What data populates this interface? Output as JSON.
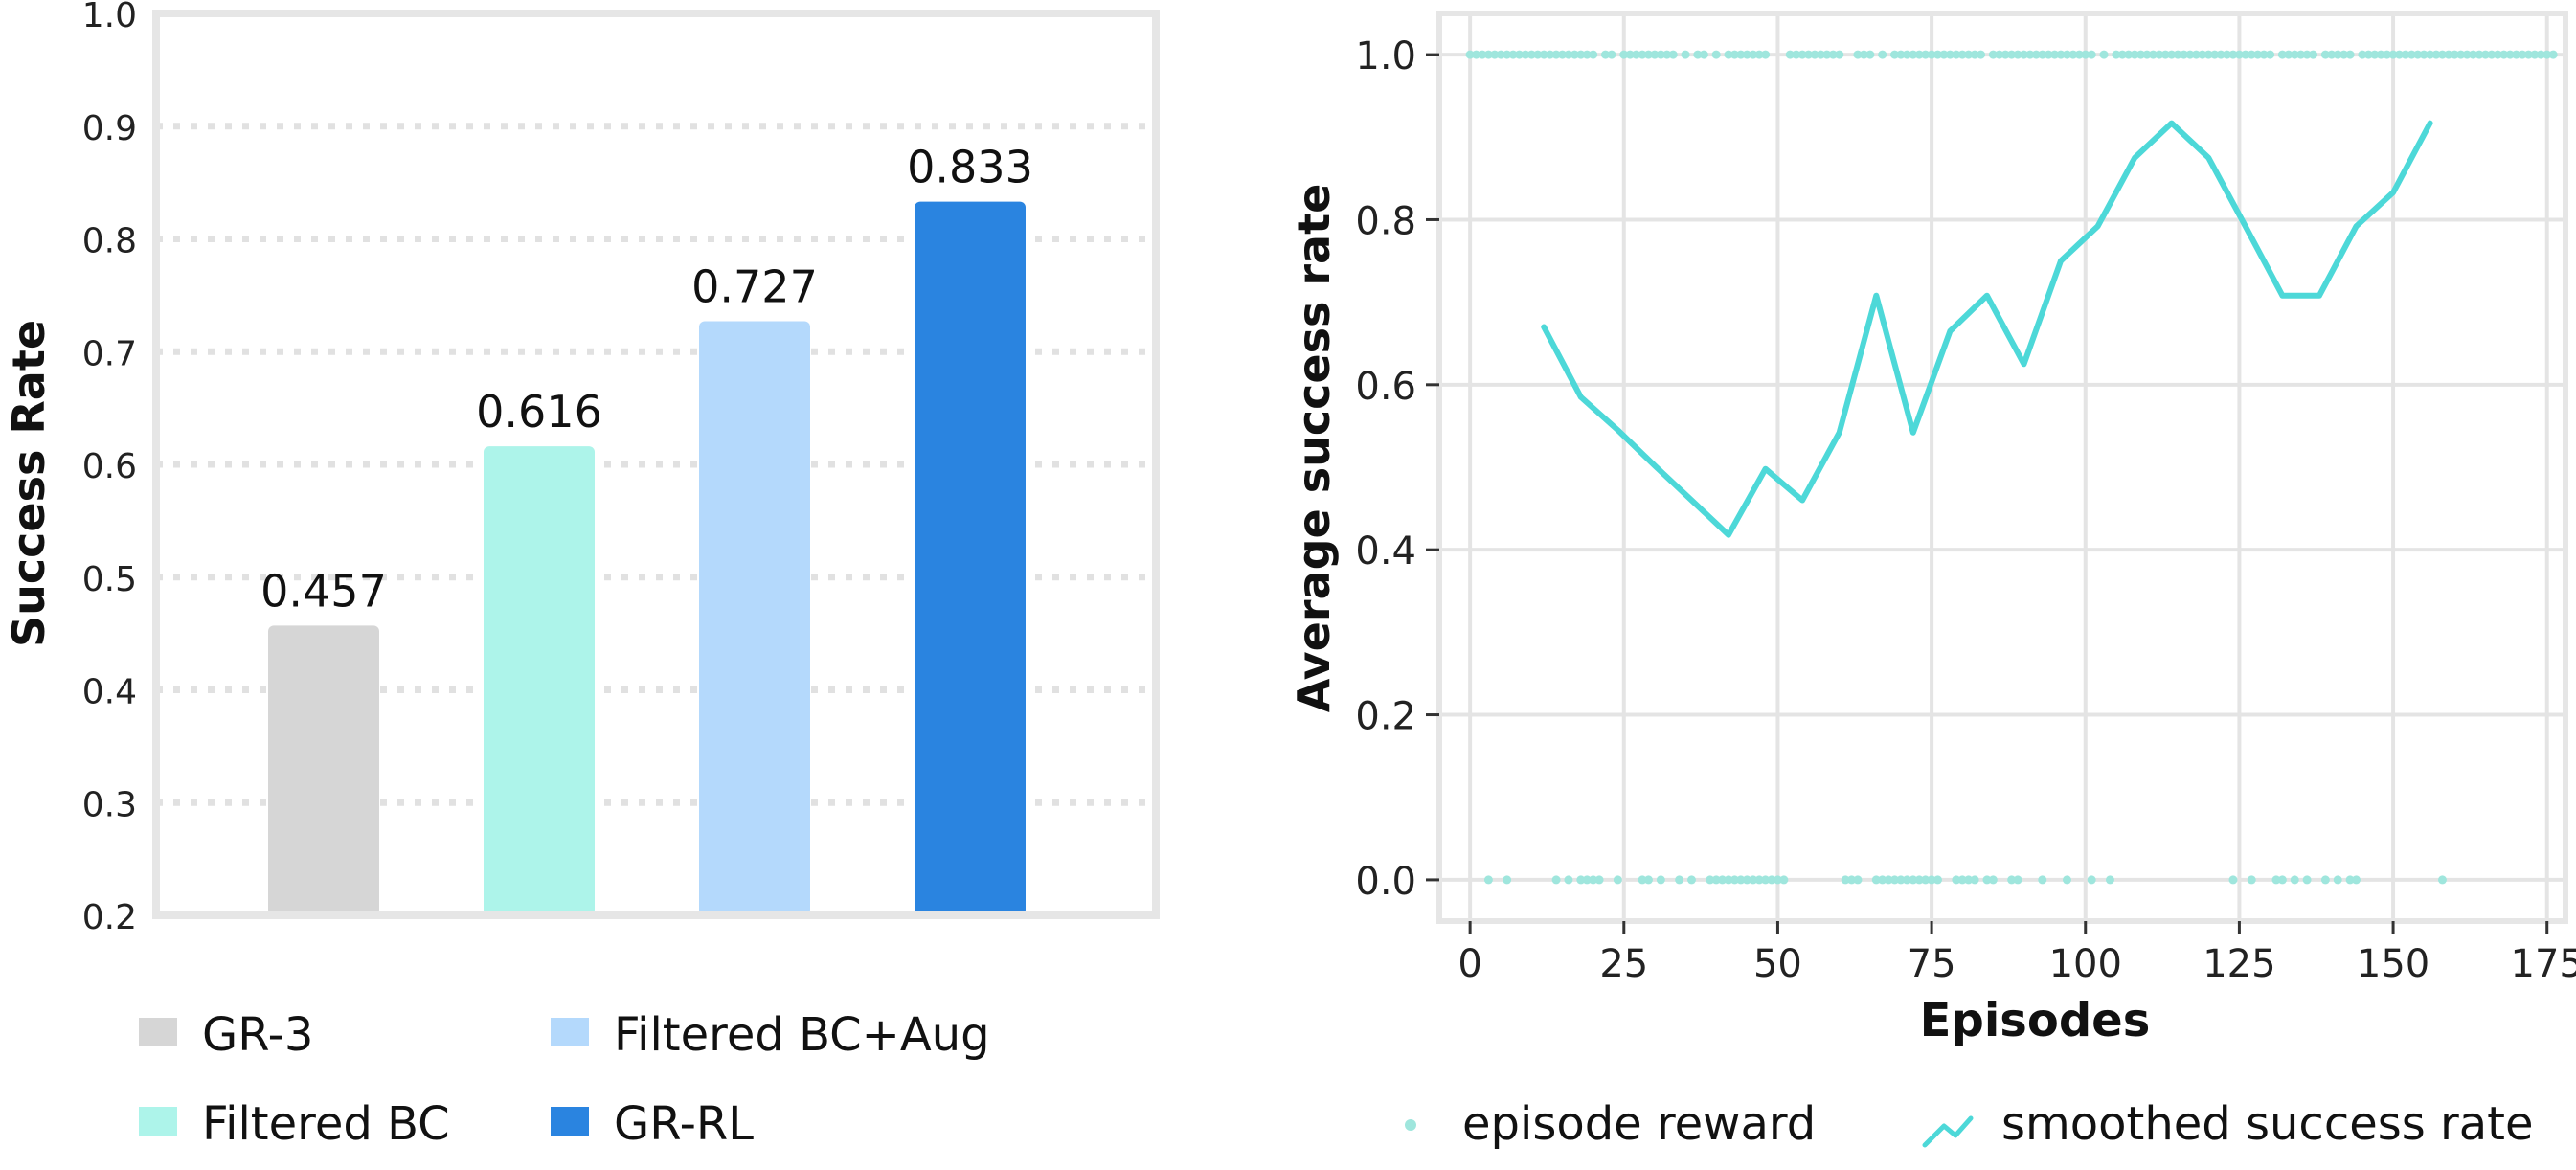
{
  "chart_data": [
    {
      "type": "bar",
      "categories": [
        "GR-3",
        "Filtered BC",
        "Filtered BC+Aug",
        "GR-RL"
      ],
      "values": [
        0.457,
        0.616,
        0.727,
        0.833
      ],
      "data_labels": [
        "0.457",
        "0.616",
        "0.727",
        "0.833"
      ],
      "colors": [
        "#d6d6d6",
        "#adf4ea",
        "#b4d9fc",
        "#2a84e0"
      ],
      "ylabel": "Success Rate",
      "ylim": [
        0.2,
        1.0
      ],
      "yticks": [
        "0.2",
        "0.3",
        "0.4",
        "0.5",
        "0.6",
        "0.7",
        "0.8",
        "0.9",
        "1.0"
      ],
      "grid": "horizontal dotted",
      "legend": {
        "placement": "bottom",
        "entries": [
          {
            "label": "GR-3",
            "color": "#d6d6d6"
          },
          {
            "label": "Filtered BC+Aug",
            "color": "#b4d9fc"
          },
          {
            "label": "Filtered BC",
            "color": "#adf4ea"
          },
          {
            "label": "GR-RL",
            "color": "#2a84e0"
          }
        ]
      }
    },
    {
      "type": "line",
      "xlabel": "Episodes",
      "ylabel": "Average success rate",
      "xlim": [
        -5,
        178
      ],
      "ylim": [
        -0.05,
        1.05
      ],
      "xticks": [
        "0",
        "25",
        "50",
        "75",
        "100",
        "125",
        "150",
        "175"
      ],
      "yticks": [
        "0.0",
        "0.2",
        "0.4",
        "0.6",
        "0.8",
        "1.0"
      ],
      "grid": true,
      "series": [
        {
          "name": "smoothed success rate",
          "color": "#4dd8d8",
          "x": [
            12,
            18,
            24,
            30,
            36,
            42,
            48,
            54,
            60,
            66,
            72,
            78,
            84,
            90,
            96,
            102,
            108,
            114,
            120,
            126,
            132,
            138,
            144,
            150,
            156
          ],
          "y": [
            0.67,
            0.585,
            0.545,
            0.502,
            0.46,
            0.418,
            0.498,
            0.46,
            0.542,
            0.708,
            0.542,
            0.665,
            0.708,
            0.625,
            0.75,
            0.792,
            0.875,
            0.917,
            0.875,
            0.792,
            0.708,
            0.708,
            0.792,
            0.833,
            0.917
          ]
        },
        {
          "name": "episode reward",
          "color": "#9fe6dd",
          "x_success": [
            0,
            1,
            2,
            3,
            4,
            5,
            6,
            7,
            8,
            9,
            10,
            11,
            12,
            13,
            14,
            15,
            16,
            17,
            18,
            19,
            20,
            22,
            23,
            25,
            26,
            27,
            28,
            29,
            30,
            31,
            32,
            33,
            35,
            37,
            38,
            40,
            42,
            43,
            44,
            45,
            46,
            47,
            48,
            52,
            53,
            54,
            55,
            56,
            57,
            58,
            59,
            60,
            63,
            64,
            65,
            67,
            69,
            70,
            71,
            72,
            73,
            74,
            75,
            76,
            77,
            78,
            79,
            80,
            81,
            82,
            83,
            85,
            86,
            87,
            88,
            89,
            90,
            91,
            92,
            93,
            94,
            95,
            96,
            97,
            98,
            99,
            100,
            101,
            103,
            105,
            106,
            107,
            108,
            109,
            110,
            111,
            112,
            113,
            114,
            115,
            116,
            117,
            118,
            119,
            120,
            121,
            122,
            123,
            124,
            125,
            126,
            127,
            128,
            129,
            130,
            132,
            133,
            134,
            135,
            136,
            137,
            139,
            140,
            141,
            142,
            143,
            145,
            146,
            147,
            148,
            149,
            150,
            151,
            152,
            153,
            154,
            155,
            156,
            157,
            158,
            159,
            160,
            161,
            162,
            163,
            164,
            165,
            166,
            167,
            168,
            169,
            170,
            171,
            172,
            173,
            174,
            175,
            176
          ],
          "x_failure": [
            3,
            6,
            14,
            16,
            18,
            19,
            20,
            21,
            24,
            28,
            29,
            31,
            34,
            36,
            39,
            40,
            41,
            42,
            43,
            44,
            45,
            46,
            47,
            48,
            49,
            50,
            51,
            61,
            62,
            63,
            66,
            67,
            68,
            69,
            70,
            71,
            72,
            73,
            74,
            75,
            76,
            79,
            80,
            81,
            82,
            84,
            85,
            88,
            89,
            93,
            97,
            101,
            104,
            124,
            127,
            131,
            132,
            134,
            136,
            139,
            141,
            143,
            144,
            158
          ]
        }
      ],
      "legend": {
        "placement": "bottom",
        "entries": [
          {
            "label": "episode reward",
            "marker": "dot",
            "color": "#9fe6dd"
          },
          {
            "label": "smoothed success rate",
            "marker": "line",
            "color": "#4dd8d8"
          }
        ]
      }
    }
  ]
}
